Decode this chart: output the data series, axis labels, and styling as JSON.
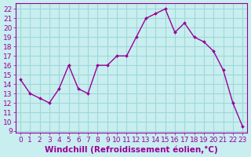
{
  "x": [
    0,
    1,
    2,
    3,
    4,
    5,
    6,
    7,
    8,
    9,
    10,
    11,
    12,
    13,
    14,
    15,
    16,
    17,
    18,
    19,
    20,
    21,
    22,
    23
  ],
  "y": [
    14.5,
    13.0,
    12.5,
    12.0,
    13.5,
    16.0,
    13.5,
    13.0,
    16.0,
    16.0,
    17.0,
    17.0,
    19.0,
    21.0,
    21.5,
    22.0,
    19.5,
    20.5,
    19.0,
    18.5,
    17.5,
    15.5,
    12.0,
    9.5
  ],
  "line_color": "#990099",
  "marker_color": "#990099",
  "bg_color": "#c8eef0",
  "grid_color": "#a0d8d8",
  "xlabel": "Windchill (Refroidissement éolien,°C)",
  "xlabel_color": "#990099",
  "ylim": [
    8.8,
    22.6
  ],
  "xlim": [
    -0.5,
    23.5
  ],
  "yticks": [
    9,
    10,
    11,
    12,
    13,
    14,
    15,
    16,
    17,
    18,
    19,
    20,
    21,
    22
  ],
  "xticks": [
    0,
    1,
    2,
    3,
    4,
    5,
    6,
    7,
    8,
    9,
    10,
    11,
    12,
    13,
    14,
    15,
    16,
    17,
    18,
    19,
    20,
    21,
    22,
    23
  ],
  "tick_color": "#990099",
  "tick_fontsize": 6.5,
  "xlabel_fontsize": 7.5
}
